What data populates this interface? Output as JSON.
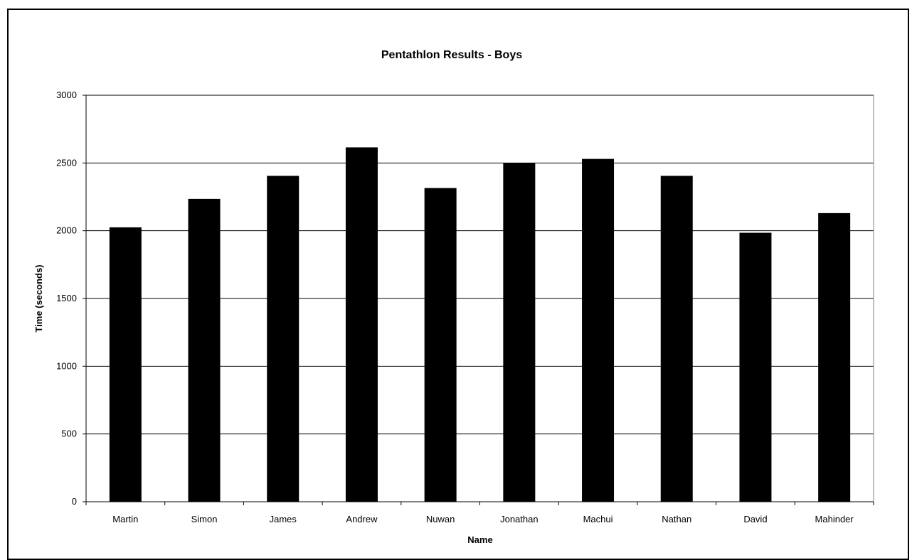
{
  "chart_data": {
    "type": "bar",
    "title": "Pentathlon Results - Boys",
    "xlabel": "Name",
    "ylabel": "Time (seconds)",
    "categories": [
      "Martin",
      "Simon",
      "James",
      "Andrew",
      "Nuwan",
      "Jonathan",
      "Machui",
      "Nathan",
      "David",
      "Mahinder"
    ],
    "values": [
      2025,
      2235,
      2405,
      2615,
      2315,
      2500,
      2530,
      2405,
      1985,
      2130
    ],
    "ylim": [
      0,
      3000
    ],
    "yticks": [
      0,
      500,
      1000,
      1500,
      2000,
      2500,
      3000
    ],
    "grid": true,
    "legend": "none",
    "bar_color": "#000000",
    "background_color": "#ffffff"
  }
}
